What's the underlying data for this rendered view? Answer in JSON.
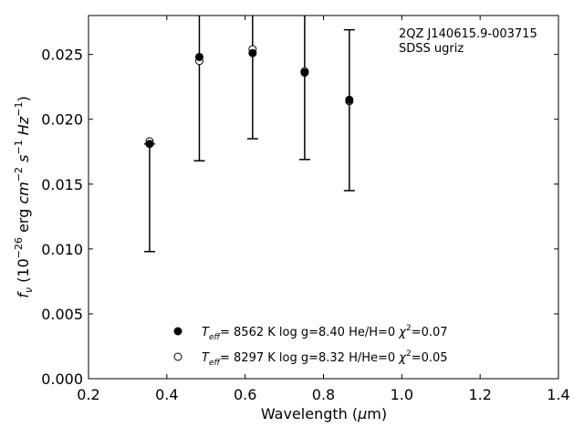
{
  "chart_data": {
    "type": "scatter",
    "title": "",
    "xlabel": "Wavelength (μm)",
    "ylabel": "f_ν (10^-26 erg cm^-2 s^-1 Hz^-1)",
    "xlim": [
      0.2,
      1.4
    ],
    "ylim": [
      0.0,
      0.028
    ],
    "xticks": [
      0.2,
      0.4,
      0.6,
      0.8,
      1.0,
      1.2,
      1.4
    ],
    "xtick_labels": [
      "0.2",
      "0.4",
      "0.6",
      "0.8",
      "1.0",
      "1.2",
      "1.4"
    ],
    "yticks": [
      0.0,
      0.005,
      0.01,
      0.015,
      0.02,
      0.025
    ],
    "ytick_labels": [
      "0.000",
      "0.005",
      "0.010",
      "0.015",
      "0.020",
      "0.025"
    ],
    "grid": false,
    "annotations": [
      "2QZ J140615.9-003715",
      "SDSS ugriz"
    ],
    "annotation_placement": "top-right",
    "legend_placement": "bottom-center",
    "observed": {
      "x": [
        0.356,
        0.483,
        0.619,
        0.752,
        0.866
      ],
      "y": [
        0.0181,
        0.0248,
        0.0252,
        0.0237,
        0.0215
      ],
      "yerr_low": [
        0.0098,
        0.0168,
        0.0185,
        0.0169,
        0.0145
      ],
      "yerr_high": [
        0.0181,
        0.03,
        0.03,
        0.03,
        0.0269
      ]
    },
    "series": [
      {
        "name": "T_eff= 8562 K  log g=8.40  He/H=0  χ²=0.07",
        "marker": "filled-circle",
        "x": [
          0.356,
          0.483,
          0.619,
          0.752,
          0.866
        ],
        "values": [
          0.0181,
          0.0248,
          0.0251,
          0.0236,
          0.0215
        ]
      },
      {
        "name": "T_eff= 8297 K  log g=8.32  H/He=0  χ²=0.05",
        "marker": "open-circle",
        "x": [
          0.356,
          0.483,
          0.619,
          0.752,
          0.866
        ],
        "values": [
          0.0183,
          0.0245,
          0.0254,
          0.0237,
          0.0214
        ]
      }
    ],
    "legend": [
      {
        "marker": "filled-circle",
        "teff": "8562",
        "logg": "8.40",
        "comp": "He/H=0",
        "chi2": "0.07"
      },
      {
        "marker": "open-circle",
        "teff": "8297",
        "logg": "8.32",
        "comp": "H/He=0",
        "chi2": "0.05"
      }
    ]
  }
}
